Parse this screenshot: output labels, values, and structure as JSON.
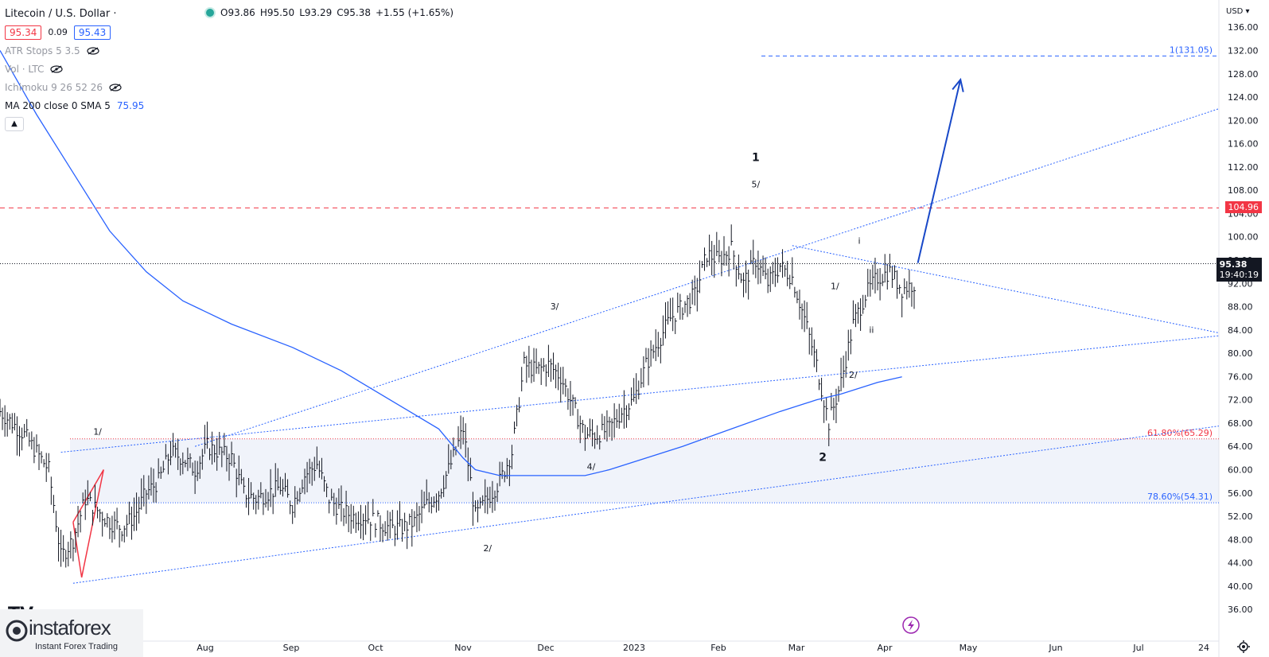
{
  "header": {
    "symbol_title": "Litecoin / U.S. Dollar ·",
    "open": "O93.86",
    "high": "H95.50",
    "low": "L93.29",
    "close": "C95.38",
    "change": "+1.55 (+1.65%)",
    "bid": "95.34",
    "spread": "0.09",
    "ask": "95.43"
  },
  "indicators": {
    "atr": "ATR Stops 5 3.5",
    "vol": "Vol · LTC",
    "ichimoku": "Ichimoku 9 26 52 26",
    "ma_label": "MA 200 close 0 SMA 5",
    "ma_value": "75.95",
    "collapse_icon": "chevron-up-icon"
  },
  "axis": {
    "currency": "USD",
    "price_ticks": [
      "136.00",
      "132.00",
      "128.00",
      "124.00",
      "120.00",
      "116.00",
      "112.00",
      "108.00",
      "104.00",
      "100.00",
      "96.00",
      "92.00",
      "88.00",
      "84.00",
      "80.00",
      "76.00",
      "72.00",
      "68.00",
      "64.00",
      "60.00",
      "56.00",
      "52.00",
      "48.00",
      "44.00",
      "40.00",
      "36.00"
    ],
    "time_labels": [
      "Aug",
      "Sep",
      "Oct",
      "Nov",
      "Dec",
      "2023",
      "Feb",
      "Mar",
      "Apr",
      "May",
      "Jun",
      "Jul",
      "24"
    ],
    "settings_icon": "gear-icon"
  },
  "price_tags": {
    "resistance": "104.96",
    "last": "95.38",
    "countdown": "19:40:19"
  },
  "levels": {
    "target": "1(131.05)",
    "fib_618": "61.80%(65.29)",
    "fib_786": "78.60%(54.31)"
  },
  "wave_labels": {
    "w1_sub_1": "1/",
    "w1_sub_2": "2/",
    "w1_sub_3": "3/",
    "w1_sub_4": "4/",
    "w1_sub_5": "5/",
    "wave_1": "1",
    "wave_2": "2",
    "w3_sub_1": "1/",
    "w3_sub_2": "2/",
    "sub_i": "i",
    "sub_ii": "ii"
  },
  "watermark": {
    "brand": "instaforex",
    "tagline": "Instant Forex Trading",
    "tv_mark": "TV"
  },
  "colors": {
    "up": "#26a69a",
    "bar": "#131722",
    "ma": "#2962ff",
    "resistance": "#f23645",
    "fib618": "#f23645",
    "fib786": "#2962ff",
    "trend": "#2962ff",
    "arrow": "#1848c8"
  },
  "chart_data": {
    "type": "ohlc",
    "title": "Litecoin / U.S. Dollar",
    "ylim": [
      34,
      138
    ],
    "x_domain": [
      0,
      100
    ],
    "y_axis_ticks": [
      136,
      132,
      128,
      124,
      120,
      116,
      112,
      108,
      104,
      100,
      96,
      92,
      88,
      84,
      80,
      76,
      72,
      68,
      64,
      60,
      56,
      52,
      48,
      44,
      40,
      36
    ],
    "series": [
      {
        "name": "LTC close (approx.)",
        "points": [
          [
            0,
            70
          ],
          [
            2,
            66
          ],
          [
            4,
            60
          ],
          [
            5,
            45
          ],
          [
            6,
            48
          ],
          [
            7,
            55
          ],
          [
            8,
            53
          ],
          [
            9,
            51
          ],
          [
            10,
            50
          ],
          [
            11,
            52
          ],
          [
            12,
            56
          ],
          [
            13,
            58
          ],
          [
            14,
            63
          ],
          [
            15,
            62
          ],
          [
            16,
            60
          ],
          [
            17,
            64
          ],
          [
            18,
            63
          ],
          [
            19,
            62
          ],
          [
            20,
            56
          ],
          [
            21,
            55
          ],
          [
            22,
            56
          ],
          [
            23,
            57
          ],
          [
            24,
            54
          ],
          [
            25,
            59
          ],
          [
            26,
            61
          ],
          [
            27,
            55
          ],
          [
            28,
            53
          ],
          [
            29,
            52
          ],
          [
            30,
            52
          ],
          [
            31,
            51
          ],
          [
            32,
            50
          ],
          [
            33,
            50
          ],
          [
            34,
            51
          ],
          [
            35,
            54
          ],
          [
            36,
            56
          ],
          [
            37,
            61
          ],
          [
            38,
            67
          ],
          [
            39,
            52
          ],
          [
            40,
            55
          ],
          [
            41,
            58
          ],
          [
            42,
            63
          ],
          [
            43,
            78
          ],
          [
            44,
            77
          ],
          [
            45,
            78
          ],
          [
            46,
            76
          ],
          [
            47,
            71
          ],
          [
            48,
            66
          ],
          [
            49,
            66
          ],
          [
            50,
            67
          ],
          [
            51,
            70
          ],
          [
            52,
            72
          ],
          [
            53,
            78
          ],
          [
            54,
            82
          ],
          [
            55,
            86
          ],
          [
            56,
            88
          ],
          [
            57,
            90
          ],
          [
            58,
            97
          ],
          [
            59,
            96
          ],
          [
            60,
            98
          ],
          [
            61,
            92
          ],
          [
            62,
            96
          ],
          [
            63,
            92
          ],
          [
            64,
            95
          ],
          [
            65,
            93
          ],
          [
            66,
            86
          ],
          [
            67,
            78
          ],
          [
            68,
            68
          ],
          [
            69,
            75
          ],
          [
            70,
            85
          ],
          [
            71,
            90
          ],
          [
            72,
            93
          ],
          [
            73,
            94
          ],
          [
            74,
            91
          ],
          [
            75,
            92
          ],
          [
            75.3,
            95.38
          ]
        ]
      },
      {
        "name": "MA 200 close 0 SMA 5",
        "points": [
          [
            0,
            132
          ],
          [
            3,
            121
          ],
          [
            6,
            111
          ],
          [
            9,
            101
          ],
          [
            12,
            94
          ],
          [
            15,
            89
          ],
          [
            19,
            85
          ],
          [
            24,
            81
          ],
          [
            28,
            77
          ],
          [
            32,
            72
          ],
          [
            36,
            67
          ],
          [
            38,
            62
          ],
          [
            39,
            60
          ],
          [
            41,
            59
          ],
          [
            44,
            59
          ],
          [
            48,
            59
          ],
          [
            50,
            60
          ],
          [
            53,
            62
          ],
          [
            56,
            64
          ],
          [
            60,
            67
          ],
          [
            64,
            70
          ],
          [
            67,
            72
          ],
          [
            69,
            73
          ],
          [
            72,
            75
          ],
          [
            74,
            75.95
          ]
        ]
      }
    ],
    "levels": [
      {
        "name": "target",
        "value": 131.05,
        "label": "1(131.05)",
        "style": "dashed"
      },
      {
        "name": "resistance",
        "value": 104.96,
        "label": "104.96",
        "style": "dashed"
      },
      {
        "name": "last price",
        "value": 95.38,
        "label": "95.38",
        "style": "dotted"
      },
      {
        "name": "fib 61.8%",
        "value": 65.29,
        "label": "61.80%(65.29)",
        "style": "dotted"
      },
      {
        "name": "fib 78.6%",
        "value": 54.31,
        "label": "78.60%(54.31)",
        "style": "dotted"
      }
    ],
    "trendlines": [
      {
        "name": "lower channel",
        "from": [
          6,
          40.5
        ],
        "to": [
          100,
          67.5
        ]
      },
      {
        "name": "middle channel",
        "from": [
          5,
          63
        ],
        "to": [
          100,
          83
        ]
      },
      {
        "name": "upper channel",
        "from": [
          16,
          64
        ],
        "to": [
          100,
          122
        ]
      },
      {
        "name": "triangle top",
        "from": [
          65,
          98.5
        ],
        "to": [
          100,
          83.5
        ]
      }
    ],
    "projection": {
      "from": [
        75.3,
        95.5
      ],
      "to": [
        78.8,
        127
      ]
    },
    "wave_points": {
      "w1_sub_1": [
        8,
        66
      ],
      "w1_sub_2": [
        40,
        46
      ],
      "w1_sub_3": [
        45.5,
        87.5
      ],
      "w1_sub_4": [
        48.5,
        60
      ],
      "w1_sub_5": [
        62,
        108.5
      ],
      "wave_1": [
        62,
        113
      ],
      "wave_2": [
        67.5,
        61.5
      ],
      "w3_sub_1": [
        68.5,
        91
      ],
      "w3_sub_2": [
        70,
        75.8
      ],
      "sub_i": [
        70.5,
        98.8
      ],
      "sub_ii": [
        71.5,
        83.5
      ]
    }
  }
}
